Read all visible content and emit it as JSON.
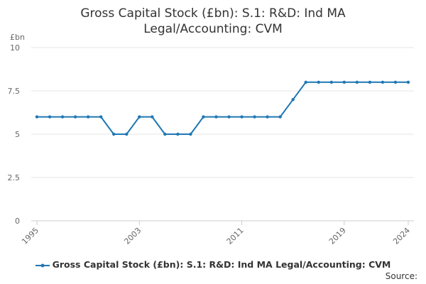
{
  "chart_data": {
    "type": "line",
    "title_lines": [
      "Gross Capital Stock (£bn): S.1: R&D: Ind MA",
      "Legal/Accounting: CVM"
    ],
    "title": "Gross Capital Stock (£bn): S.1: R&D: Ind MA Legal/Accounting: CVM",
    "ylabel": "£bn",
    "xlabel": "",
    "ylim": [
      0,
      10
    ],
    "xlim": [
      1995,
      2024
    ],
    "y_ticks": [
      "0",
      "2.5",
      "5",
      "7.5",
      "10"
    ],
    "y_tick_values": [
      0,
      2.5,
      5,
      7.5,
      10
    ],
    "x_ticks": [
      "1995",
      "2003",
      "2011",
      "2019",
      "2024"
    ],
    "x_tick_values": [
      1995,
      2003,
      2011,
      2019,
      2024
    ],
    "grid": true,
    "legend_position": "bottom",
    "x": [
      1995,
      1996,
      1997,
      1998,
      1999,
      2000,
      2001,
      2002,
      2003,
      2004,
      2005,
      2006,
      2007,
      2008,
      2009,
      2010,
      2011,
      2012,
      2013,
      2014,
      2015,
      2016,
      2017,
      2018,
      2019,
      2020,
      2021,
      2022,
      2023,
      2024
    ],
    "series": [
      {
        "name": "Gross Capital Stock (£bn): S.1: R&D: Ind MA Legal/Accounting: CVM",
        "color": "#1f77b4",
        "values": [
          6,
          6,
          6,
          6,
          6,
          6,
          5,
          5,
          6,
          6,
          5,
          5,
          5,
          6,
          6,
          6,
          6,
          6,
          6,
          6,
          7,
          8,
          8,
          8,
          8,
          8,
          8,
          8,
          8,
          8
        ]
      }
    ]
  },
  "source_label": "Source:"
}
